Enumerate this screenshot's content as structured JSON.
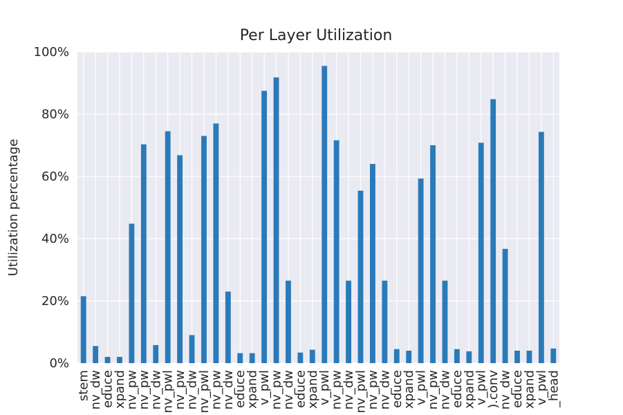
{
  "chart_data": {
    "type": "bar",
    "title": "Per Layer Utilization",
    "xlabel": "",
    "ylabel": "Utilization percentage",
    "ylim": [
      0,
      100
    ],
    "yticks": [
      "0%",
      "20%",
      "40%",
      "60%",
      "80%",
      "100%"
    ],
    "grid": true,
    "bar_color": "#2a7ab9",
    "background_color": "#eaeaf2",
    "categories": [
      "stem",
      "nv_dw",
      "educe",
      "xpand",
      "nv_pw",
      "nv_pw",
      "nv_dw",
      "nv_pwl",
      "nv_pw",
      "nv_dw",
      "nv_pwl",
      "nv_pw",
      "nv_dw",
      "educe",
      "xpand",
      "v_pwl",
      "nv_pw",
      "nv_dw",
      "educe",
      "xpand",
      "v_pwl",
      "nv_pw",
      "nv_dw",
      "nv_pwl",
      "nv_pw",
      "nv_dw",
      "educe",
      "xpand",
      "v_pwl",
      "nv_pw",
      "nv_dw",
      "educe",
      "xpand",
      "v_pwl",
      ").conv",
      "nv_dw",
      "educe",
      "xpand",
      "v_pwl",
      "_head"
    ],
    "values": [
      21.5,
      5.5,
      2.0,
      2.0,
      44.8,
      70.3,
      5.8,
      74.5,
      66.8,
      9.0,
      73.0,
      77.0,
      23.0,
      3.2,
      3.2,
      87.5,
      91.8,
      26.5,
      3.4,
      4.3,
      95.5,
      71.6,
      26.5,
      55.4,
      64.0,
      26.5,
      4.5,
      4.0,
      59.3,
      70.0,
      26.5,
      4.5,
      3.8,
      70.8,
      84.8,
      36.7,
      4.0,
      4.0,
      74.3,
      4.7
    ]
  }
}
